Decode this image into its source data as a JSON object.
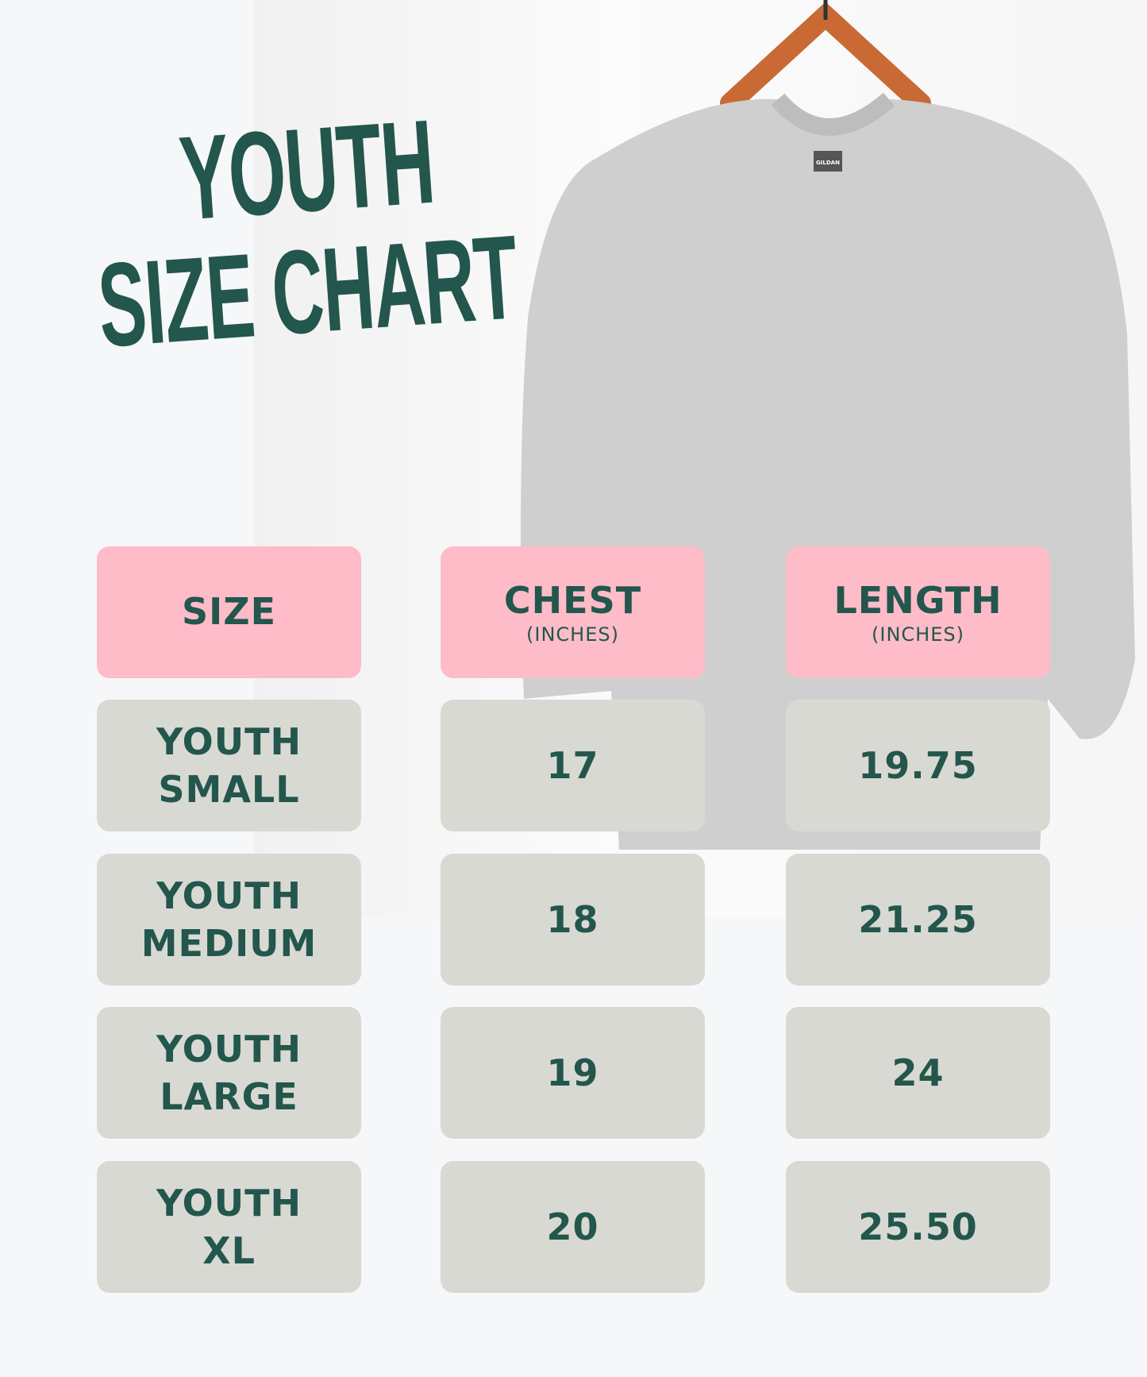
{
  "title": {
    "line1": "YOUTH",
    "line2": "SIZE CHART"
  },
  "colors": {
    "text": "#23564c",
    "header_bg": "#fdbcc8",
    "row_bg": "#d9d9d3",
    "background": "#f5f7f9"
  },
  "image": {
    "label_tag": "GILDAN"
  },
  "table": {
    "headers": [
      {
        "label": "SIZE",
        "unit": ""
      },
      {
        "label": "CHEST",
        "unit": "(INCHES)"
      },
      {
        "label": "LENGTH",
        "unit": "(INCHES)"
      }
    ],
    "rows": [
      {
        "size_line1": "YOUTH",
        "size_line2": "SMALL",
        "chest": "17",
        "length": "19.75"
      },
      {
        "size_line1": "YOUTH",
        "size_line2": "MEDIUM",
        "chest": "18",
        "length": "21.25"
      },
      {
        "size_line1": "YOUTH",
        "size_line2": "LARGE",
        "chest": "19",
        "length": "24"
      },
      {
        "size_line1": "YOUTH",
        "size_line2": "XL",
        "chest": "20",
        "length": "25.50"
      }
    ]
  }
}
